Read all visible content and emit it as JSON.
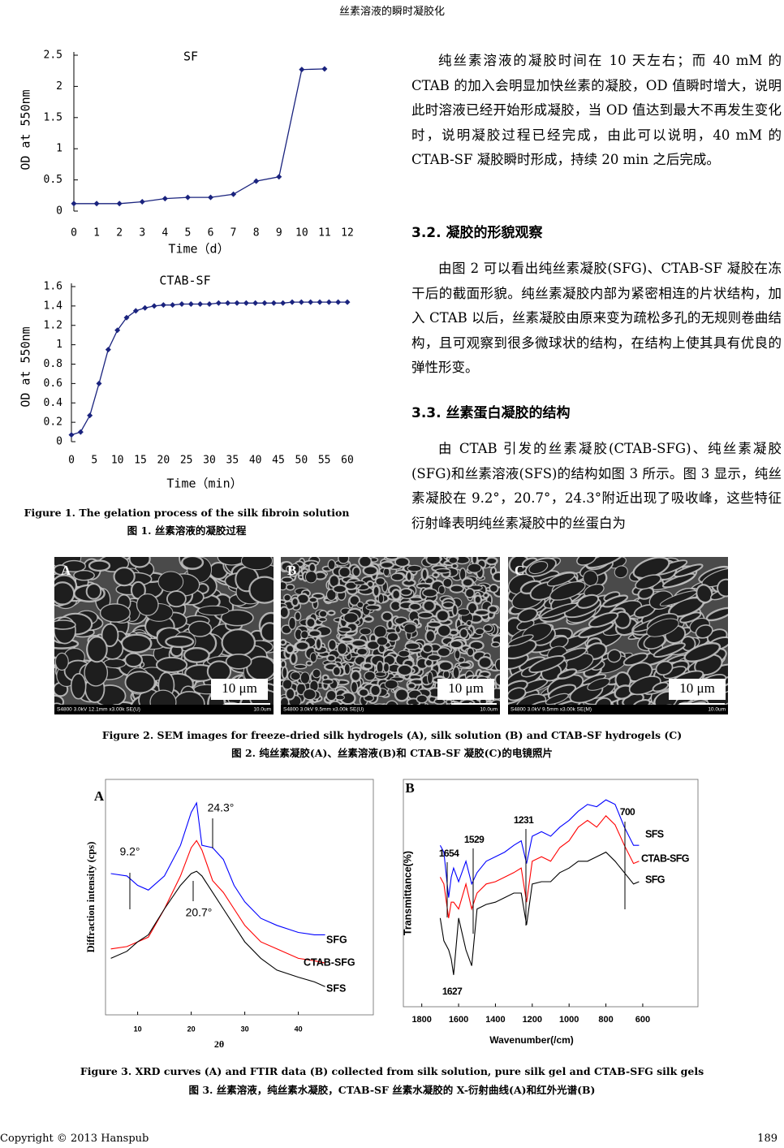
{
  "header": {
    "title": "丝素溶液的瞬时凝胶化"
  },
  "body": {
    "p1": "纯丝素溶液的凝胶时间在 10 天左右；而 40 mM 的 CTAB 的加入会明显加快丝素的凝胶，OD 值瞬时增大，说明此时溶液已经开始形成凝胶，当 OD 值达到最大不再发生变化时，说明凝胶过程已经完成，由此可以说明，40 mM 的 CTAB-SF 凝胶瞬时形成，持续 20 min 之后完成。",
    "h32": "3.2.  凝胶的形貌观察",
    "p2": "由图 2 可以看出纯丝素凝胶(SFG)、CTAB-SF 凝胶在冻干后的截面形貌。纯丝素凝胶内部为紧密相连的片状结构，加入 CTAB 以后，丝素凝胶由原来变为疏松多孔的无规则卷曲结构，且可观察到很多微球状的结构，在结构上使其具有优良的弹性形变。",
    "h33": "3.3.  丝素蛋白凝胶的结构",
    "p3": "由 CTAB 引发的丝素凝胶(CTAB-SFG)、纯丝素凝胶(SFG)和丝素溶液(SFS)的结构如图 3 所示。图 3 显示，纯丝素凝胶在 9.2°，20.7°，24.3°附近出现了吸收峰，这些特征衍射峰表明纯丝素凝胶中的丝蛋白为"
  },
  "figure1": {
    "caption_en": "Figure 1. The gelation process of the silk fibroin solution",
    "caption_zh": "图 1.  丝素溶液的凝胶过程",
    "charts": [
      {
        "type": "line",
        "title": "SF",
        "x_label": "Time（d）",
        "y_label": "OD at 550nm",
        "x": [
          0,
          1,
          2,
          3,
          4,
          5,
          6,
          7,
          8,
          9,
          10,
          11
        ],
        "values": [
          0.12,
          0.12,
          0.12,
          0.15,
          0.2,
          0.22,
          0.22,
          0.27,
          0.48,
          0.55,
          2.27,
          2.28
        ],
        "color": "#1a237e",
        "marker": "diamond",
        "xlim": [
          0,
          12
        ],
        "xticks": [
          0,
          1,
          2,
          3,
          4,
          5,
          6,
          7,
          8,
          9,
          10,
          11,
          12
        ],
        "ylim": [
          0,
          2.5
        ],
        "yticks": [
          0,
          0.5,
          1,
          1.5,
          2,
          2.5
        ]
      },
      {
        "type": "line",
        "title": "CTAB-SF",
        "x_label": "Time（min）",
        "y_label": "OD at 550nm",
        "x": [
          0,
          2,
          4,
          6,
          8,
          10,
          12,
          14,
          16,
          18,
          20,
          22,
          24,
          26,
          28,
          30,
          32,
          34,
          36,
          38,
          40,
          42,
          44,
          46,
          48,
          50,
          52,
          54,
          56,
          58,
          60
        ],
        "values": [
          0.07,
          0.1,
          0.27,
          0.6,
          0.95,
          1.15,
          1.28,
          1.35,
          1.38,
          1.4,
          1.41,
          1.41,
          1.42,
          1.42,
          1.42,
          1.42,
          1.43,
          1.43,
          1.43,
          1.43,
          1.43,
          1.43,
          1.43,
          1.43,
          1.44,
          1.44,
          1.44,
          1.44,
          1.44,
          1.44,
          1.44
        ],
        "color": "#1a237e",
        "marker": "diamond",
        "xlim": [
          0,
          60
        ],
        "xticks": [
          0,
          5,
          10,
          15,
          20,
          25,
          30,
          35,
          40,
          45,
          50,
          55,
          60
        ],
        "ylim": [
          0,
          1.6
        ],
        "yticks": [
          0,
          0.2,
          0.4,
          0.6,
          0.8,
          1,
          1.2,
          1.4,
          1.6
        ]
      }
    ]
  },
  "figure2": {
    "caption_en": "Figure 2. SEM images for freeze-dried silk hydrogels (A), silk solution (B) and CTAB-SF hydrogels (C)",
    "caption_zh": "图 2.  纯丝素凝胶(A)、丝素溶液(B)和 CTAB-SF 凝胶(C)的电镜照片",
    "panels": [
      {
        "label": "A",
        "scale_bar": "10 μm",
        "info": "S4800 3.0kV 12.1mm x3.00k SE(U)",
        "info_scale": "10.0um"
      },
      {
        "label": "B",
        "scale_bar": "10 μm",
        "info": "S4800 3.0kV 9.5mm x3.00k SE(U)",
        "info_scale": "10.0um"
      },
      {
        "label": "C",
        "scale_bar": "10 μm",
        "info": "S4800 3.0kV 9.5mm x3.00k SE(M)",
        "info_scale": "10.0um"
      }
    ]
  },
  "figure3": {
    "caption_en": "Figure 3. XRD curves (A) and FTIR data (B) collected from silk solution, pure silk gel and CTAB-SFG silk gels",
    "caption_zh": "图 3.  丝素溶液，纯丝素水凝胶，CTAB-SF 丝素水凝胶的 X-衍射曲线(A)和红外光谱(B)",
    "charts": [
      {
        "type": "line",
        "panel": "A",
        "x_label": "2θ",
        "y_label": "Diffraction intensity (cps)",
        "annotations": [
          "9.2°",
          "24.3°",
          "20.7°"
        ],
        "x": [
          5,
          8,
          10,
          12,
          15,
          18,
          20,
          21,
          22,
          24,
          26,
          28,
          30,
          33,
          36,
          40,
          43,
          45
        ],
        "series": [
          {
            "name": "SFG",
            "color": "#0000ff",
            "values": [
              60,
              59,
              55,
              53,
              59,
              72,
              86,
              90,
              72,
              71,
              66,
              55,
              48,
              41,
              38,
              35,
              34,
              34
            ]
          },
          {
            "name": "CTAB-SFG",
            "color": "#ff0000",
            "values": [
              28,
              29,
              31,
              33,
              45,
              59,
              71,
              74,
              70,
              57,
              52,
              45,
              38,
              31,
              28,
              24,
              23,
              22
            ]
          },
          {
            "name": "SFS",
            "color": "#000000",
            "values": [
              24,
              27,
              31,
              34,
              45,
              55,
              60,
              61,
              59,
              52,
              45,
              38,
              31,
              24,
              19,
              16,
              14,
              12
            ]
          }
        ],
        "xlim": [
          4,
          54
        ],
        "xticks": [
          10,
          20,
          30,
          40
        ],
        "ylim": [
          0,
          100
        ]
      },
      {
        "type": "line",
        "panel": "B",
        "x_label": "Wavenumber(/cm)",
        "y_label": "Transmittance(%)",
        "annotations": [
          "1654",
          "1529",
          "1231",
          "700",
          "1627"
        ],
        "x": [
          1700,
          1680,
          1654,
          1640,
          1627,
          1600,
          1560,
          1529,
          1500,
          1450,
          1400,
          1350,
          1300,
          1260,
          1231,
          1200,
          1150,
          1100,
          1050,
          1000,
          950,
          900,
          850,
          800,
          750,
          700,
          650,
          620
        ],
        "series": [
          {
            "name": "SFS",
            "color": "#0000ff",
            "values": [
              71,
              68,
              48,
              57,
              61,
              55,
              64,
              54,
              59,
              64,
              66,
              68,
              71,
              73,
              63,
              75,
              77,
              75,
              79,
              82,
              86,
              89,
              88,
              91,
              89,
              79,
              71,
              71
            ]
          },
          {
            "name": "CTAB-SFG",
            "color": "#ff0000",
            "values": [
              57,
              54,
              39,
              46,
              46,
              43,
              54,
              43,
              50,
              54,
              55,
              57,
              59,
              61,
              46,
              64,
              66,
              64,
              70,
              73,
              79,
              82,
              79,
              84,
              80,
              71,
              63,
              64
            ]
          },
          {
            "name": "SFG",
            "color": "#000000",
            "values": [
              39,
              29,
              25,
              21,
              14,
              39,
              25,
              18,
              43,
              45,
              46,
              48,
              50,
              50,
              36,
              54,
              55,
              55,
              59,
              61,
              64,
              64,
              66,
              68,
              64,
              59,
              54,
              55
            ]
          }
        ],
        "xlim": [
          1900,
          300
        ],
        "xticks": [
          1800,
          1600,
          1400,
          1200,
          1000,
          800,
          600
        ],
        "ylim": [
          0,
          100
        ]
      }
    ]
  },
  "footer": {
    "copyright": "Copyright © 2013 Hanspub",
    "page": "189"
  }
}
